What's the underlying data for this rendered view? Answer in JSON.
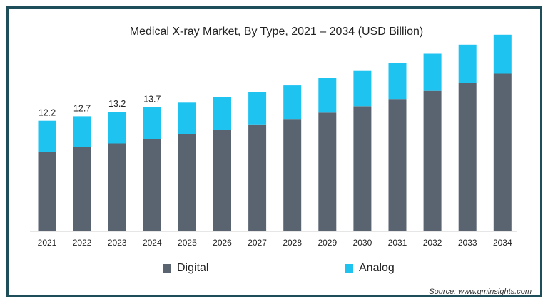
{
  "chart_data": {
    "type": "bar",
    "stacked": true,
    "title": "Medical X-ray Market, By Type, 2021 – 2034 (USD Billion)",
    "categories": [
      "2021",
      "2022",
      "2023",
      "2024",
      "2025",
      "2026",
      "2027",
      "2028",
      "2029",
      "2030",
      "2031",
      "2032",
      "2033",
      "2034"
    ],
    "series": [
      {
        "name": "Digital",
        "color": "#5a6470",
        "values": [
          8.8,
          9.3,
          9.7,
          10.2,
          10.7,
          11.2,
          11.8,
          12.4,
          13.1,
          13.8,
          14.6,
          15.5,
          16.4,
          17.4
        ]
      },
      {
        "name": "Analog",
        "color": "#1ec3f0",
        "values": [
          3.4,
          3.4,
          3.5,
          3.5,
          3.5,
          3.6,
          3.6,
          3.7,
          3.8,
          3.9,
          4.0,
          4.1,
          4.2,
          4.3
        ]
      }
    ],
    "data_labels": [
      "12.2",
      "12.7",
      "13.2",
      "13.7"
    ],
    "ylim": [
      0,
      22
    ],
    "grid": false,
    "legend_position": "bottom",
    "source": "Source: www.gminsights.com"
  }
}
